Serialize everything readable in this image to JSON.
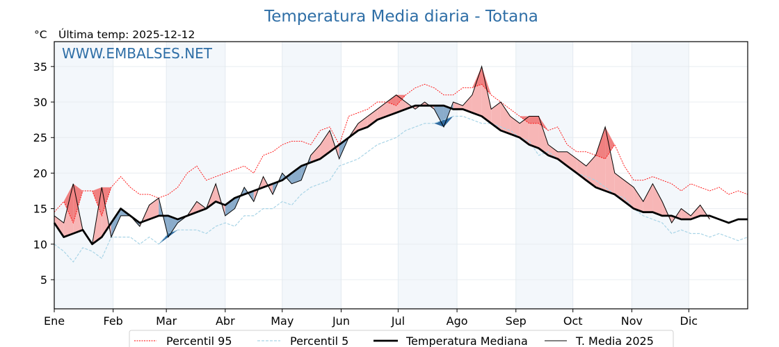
{
  "chart_data": {
    "type": "line",
    "title": "Temperatura Media diaria - Totana",
    "unit_label": "°C",
    "subtitle": "Última temp: 2025-12-12",
    "watermark": "WWW.EMBALSES.NET",
    "xlabel": "",
    "ylabel": "°C",
    "ylim": [
      0.9,
      38.5
    ],
    "xlim_days": [
      1,
      366
    ],
    "grid": true,
    "legend_position": "bottom-center",
    "yticks": [
      5,
      10,
      15,
      20,
      25,
      30,
      35
    ],
    "yticks_labels": [
      "5",
      "10",
      "15",
      "20",
      "25",
      "30",
      "35"
    ],
    "month_ticks": [
      {
        "label": "Ene",
        "day": 1
      },
      {
        "label": "Feb",
        "day": 32
      },
      {
        "label": "Mar",
        "day": 60
      },
      {
        "label": "Abr",
        "day": 91
      },
      {
        "label": "May",
        "day": 121
      },
      {
        "label": "Jun",
        "day": 152
      },
      {
        "label": "Jul",
        "day": 182
      },
      {
        "label": "Ago",
        "day": 213
      },
      {
        "label": "Sep",
        "day": 244
      },
      {
        "label": "Oct",
        "day": 274
      },
      {
        "label": "Nov",
        "day": 305
      },
      {
        "label": "Dic",
        "day": 335
      }
    ],
    "shaded_months": [
      "Ene",
      "Mar",
      "May",
      "Jul",
      "Sep",
      "Nov"
    ],
    "x_days": [
      1,
      6,
      11,
      16,
      21,
      26,
      31,
      36,
      41,
      46,
      51,
      56,
      61,
      66,
      71,
      76,
      81,
      86,
      91,
      96,
      101,
      106,
      111,
      116,
      121,
      126,
      131,
      136,
      141,
      146,
      151,
      156,
      161,
      166,
      171,
      176,
      181,
      186,
      191,
      196,
      201,
      206,
      211,
      216,
      221,
      226,
      231,
      236,
      241,
      246,
      251,
      256,
      261,
      266,
      271,
      276,
      281,
      286,
      291,
      296,
      301,
      306,
      311,
      316,
      321,
      326,
      331,
      336,
      341,
      346,
      351,
      356,
      361,
      366
    ],
    "series": [
      {
        "name": "Percentil 95",
        "color": "#ff0000",
        "style": "dotted",
        "values": [
          14.5,
          16,
          13,
          17.5,
          17.5,
          14,
          18,
          19.5,
          18,
          17,
          17,
          16.5,
          17,
          18,
          20,
          21,
          19,
          19.5,
          20,
          20.5,
          21,
          20,
          22.5,
          23,
          24,
          24.5,
          24.5,
          24,
          26,
          26.5,
          24,
          28,
          28.5,
          29,
          30,
          30,
          29.5,
          31,
          32,
          32.5,
          32,
          31,
          31,
          32,
          32,
          32.5,
          31,
          30,
          29,
          28,
          27,
          27,
          26,
          26.5,
          24,
          23,
          23,
          22.5,
          22,
          24,
          21,
          19,
          19,
          19.5,
          19,
          18.5,
          17.5,
          18.5,
          18,
          17.5,
          18,
          17,
          17.5,
          17
        ]
      },
      {
        "name": "Percentil 5",
        "color": "#a8d4e6",
        "style": "dashed",
        "values": [
          10,
          9,
          7.5,
          9.5,
          9,
          8,
          11,
          11,
          11,
          10,
          11,
          10,
          11.5,
          12,
          12,
          12,
          11.5,
          12.5,
          13,
          12.5,
          14,
          14,
          15,
          15,
          16,
          15.5,
          17,
          18,
          18.5,
          19,
          21,
          21.5,
          22,
          23,
          24,
          24.5,
          25,
          26,
          26.5,
          27,
          27,
          27.5,
          28,
          28,
          27.5,
          27,
          27,
          26.5,
          26,
          25,
          24.5,
          22.5,
          23,
          22,
          21,
          20,
          19.5,
          19,
          18,
          17,
          16.5,
          15,
          14,
          13.5,
          13,
          11.5,
          12,
          11.5,
          11.5,
          11,
          11.5,
          11,
          10.5,
          11
        ]
      },
      {
        "name": "Temperatura Mediana",
        "color": "#000000",
        "style": "solid-thick",
        "values": [
          13,
          11,
          11.5,
          12,
          10,
          11,
          13,
          15,
          14,
          13,
          13.5,
          14,
          14,
          13.5,
          14,
          14.5,
          15,
          16,
          15.5,
          16.5,
          17,
          17.5,
          18,
          18.5,
          19,
          20,
          21,
          21.5,
          22,
          23,
          24,
          25,
          26,
          26.5,
          27.5,
          28,
          28.5,
          29,
          29.5,
          29.5,
          29.5,
          29.5,
          29,
          29,
          28.5,
          28,
          27,
          26,
          25.5,
          25,
          24,
          23.5,
          22.5,
          22,
          21,
          20,
          19,
          18,
          17.5,
          17,
          16,
          15,
          14.5,
          14.5,
          14,
          14,
          13.5,
          13.5,
          14,
          14,
          13.5,
          13,
          13.5,
          13.5
        ]
      },
      {
        "name": "T. Media 2025",
        "color": "#000000",
        "style": "solid-thin",
        "values": [
          14,
          13,
          18.5,
          12,
          10,
          18,
          11,
          14,
          14,
          12.5,
          15.5,
          16.5,
          11,
          13,
          14,
          16,
          15,
          18.5,
          14,
          15,
          18,
          16,
          19.5,
          17,
          20,
          18.5,
          19,
          22.5,
          24,
          26,
          22,
          25,
          27,
          28,
          29,
          30,
          31,
          30,
          29,
          30,
          29,
          26.5,
          30,
          29.5,
          31,
          35,
          29,
          30,
          28,
          27,
          28,
          28,
          24,
          23,
          23,
          22,
          21,
          22.5,
          26.5,
          20,
          19,
          18,
          16,
          18.5,
          16,
          13,
          15,
          14,
          15.5,
          13.5,
          null,
          null,
          null,
          null
        ]
      }
    ],
    "fill_colors": {
      "above_median": "#f7b6b6",
      "above_p95": "#f08080",
      "below_median": "#8aaccb",
      "below_p5": "#2e6aa0"
    }
  },
  "legend": [
    {
      "label": "Percentil 95",
      "key": "p95"
    },
    {
      "label": "Percentil 5",
      "key": "p5"
    },
    {
      "label": "Temperatura Mediana",
      "key": "median"
    },
    {
      "label": "T. Media 2025",
      "key": "current"
    }
  ]
}
